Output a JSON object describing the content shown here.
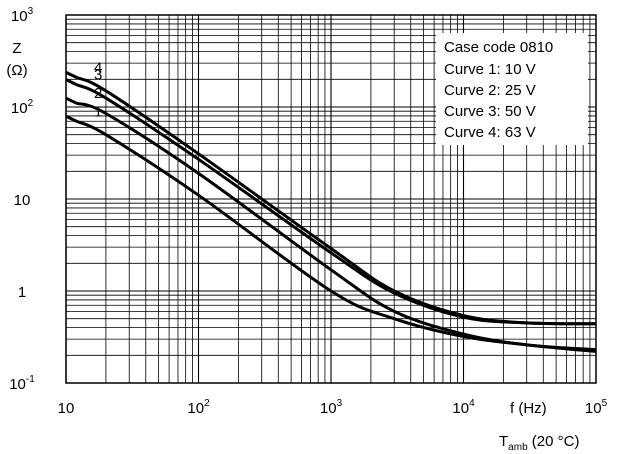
{
  "chart_data": {
    "type": "line",
    "x_scale": "log",
    "y_scale": "log",
    "xlim": [
      10,
      100000
    ],
    "ylim": [
      0.1,
      1000
    ],
    "grid": true,
    "y_axis_label_line1": "Z",
    "y_axis_label_line2": "(Ω)",
    "x_axis_label": "f  (Hz)",
    "x_axis_condition_main": "T",
    "x_axis_condition_sub": "amb",
    "x_axis_condition_rest": " (20 °C)",
    "x_ticks": [
      {
        "value": 10,
        "base": "10",
        "exp": ""
      },
      {
        "value": 100,
        "base": "10",
        "exp": "2"
      },
      {
        "value": 1000,
        "base": "10",
        "exp": "3"
      },
      {
        "value": 10000,
        "base": "10",
        "exp": "4"
      },
      {
        "value": 100000,
        "base": "10",
        "exp": "5"
      }
    ],
    "y_ticks": [
      {
        "value": 0.1,
        "base": "10",
        "exp": "-1"
      },
      {
        "value": 1,
        "base": "1",
        "exp": ""
      },
      {
        "value": 10,
        "base": "10",
        "exp": ""
      },
      {
        "value": 100,
        "base": "10",
        "exp": "2"
      },
      {
        "value": 1000,
        "base": "10",
        "exp": "3"
      }
    ],
    "legend": {
      "placement": "top-right",
      "lines": [
        "Case code 0810",
        "Curve 1: 10 V",
        "Curve 2: 25 V",
        "Curve 3: 50 V",
        "Curve 4: 63 V"
      ]
    },
    "series": [
      {
        "name": "1",
        "x": [
          12,
          20,
          100,
          1000,
          3000,
          10000,
          30000,
          100000
        ],
        "y": [
          70,
          50,
          11,
          1.0,
          0.5,
          0.32,
          0.26,
          0.22
        ]
      },
      {
        "name": "2",
        "x": [
          12,
          20,
          100,
          1000,
          3000,
          10000,
          30000,
          100000
        ],
        "y": [
          110,
          85,
          19,
          1.7,
          0.6,
          0.34,
          0.26,
          0.23
        ]
      },
      {
        "name": "3",
        "x": [
          12,
          20,
          100,
          1000,
          3000,
          10000,
          30000,
          100000
        ],
        "y": [
          175,
          125,
          27,
          2.6,
          0.95,
          0.52,
          0.45,
          0.44
        ]
      },
      {
        "name": "4",
        "x": [
          12,
          20,
          100,
          1000,
          3000,
          10000,
          30000,
          100000
        ],
        "y": [
          210,
          150,
          31,
          2.9,
          1.0,
          0.54,
          0.45,
          0.44
        ]
      }
    ]
  }
}
